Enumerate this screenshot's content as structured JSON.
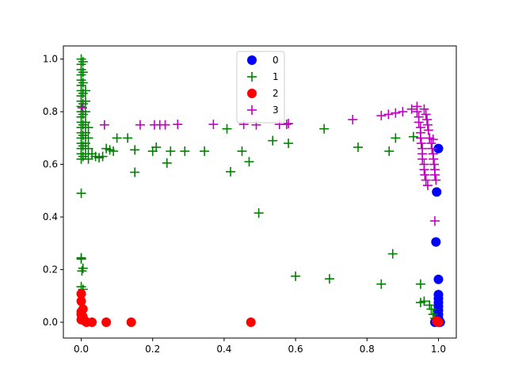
{
  "chart_data": {
    "type": "scatter",
    "title": "",
    "xlabel": "",
    "ylabel": "",
    "xlim": [
      -0.05,
      1.05
    ],
    "ylim": [
      -0.06,
      1.05
    ],
    "xticks": [
      "0.0",
      "0.2",
      "0.4",
      "0.6",
      "0.8",
      "1.0"
    ],
    "yticks": [
      "0.0",
      "0.2",
      "0.4",
      "0.6",
      "0.8",
      "1.0"
    ],
    "grid": false,
    "legend_position": "top-center",
    "series": [
      {
        "name": "0",
        "marker": "circle",
        "color": "#0000ff",
        "points": [
          [
            1.0,
            0.66
          ],
          [
            0.995,
            0.495
          ],
          [
            0.993,
            0.305
          ],
          [
            1.0,
            0.163
          ],
          [
            1.0,
            0.105
          ],
          [
            1.0,
            0.09
          ],
          [
            1.0,
            0.075
          ],
          [
            1.0,
            0.06
          ],
          [
            1.0,
            0.045
          ],
          [
            1.0,
            0.03
          ],
          [
            1.0,
            0.015
          ],
          [
            1.0,
            0.0
          ],
          [
            0.99,
            0.0
          ],
          [
            1.005,
            0.0
          ]
        ]
      },
      {
        "name": "1",
        "marker": "plus",
        "color": "#008000",
        "points": [
          [
            0.0,
            1.0
          ],
          [
            0.0,
            0.98
          ],
          [
            0.0,
            0.96
          ],
          [
            0.0,
            0.94
          ],
          [
            0.0,
            0.92
          ],
          [
            0.0,
            0.9
          ],
          [
            0.0,
            0.88
          ],
          [
            0.0,
            0.86
          ],
          [
            0.0,
            0.84
          ],
          [
            0.0,
            0.82
          ],
          [
            0.0,
            0.8
          ],
          [
            0.0,
            0.78
          ],
          [
            0.0,
            0.76
          ],
          [
            0.0,
            0.74
          ],
          [
            0.0,
            0.72
          ],
          [
            0.0,
            0.7
          ],
          [
            0.0,
            0.68
          ],
          [
            0.0,
            0.66
          ],
          [
            0.0,
            0.64
          ],
          [
            0.0,
            0.62
          ],
          [
            0.005,
            0.99
          ],
          [
            0.005,
            0.95
          ],
          [
            0.005,
            0.91
          ],
          [
            0.005,
            0.87
          ],
          [
            0.005,
            0.83
          ],
          [
            0.005,
            0.79
          ],
          [
            0.005,
            0.75
          ],
          [
            0.005,
            0.71
          ],
          [
            0.005,
            0.67
          ],
          [
            0.005,
            0.63
          ],
          [
            0.012,
            0.88
          ],
          [
            0.012,
            0.84
          ],
          [
            0.012,
            0.8
          ],
          [
            0.012,
            0.76
          ],
          [
            0.012,
            0.72
          ],
          [
            0.012,
            0.68
          ],
          [
            0.012,
            0.64
          ],
          [
            0.02,
            0.74
          ],
          [
            0.02,
            0.7
          ],
          [
            0.02,
            0.66
          ],
          [
            0.02,
            0.62
          ],
          [
            0.03,
            0.64
          ],
          [
            0.04,
            0.63
          ],
          [
            0.05,
            0.625
          ],
          [
            0.06,
            0.63
          ],
          [
            0.07,
            0.66
          ],
          [
            0.08,
            0.655
          ],
          [
            0.09,
            0.65
          ],
          [
            0.1,
            0.7
          ],
          [
            0.13,
            0.7
          ],
          [
            0.15,
            0.655
          ],
          [
            0.2,
            0.65
          ],
          [
            0.21,
            0.665
          ],
          [
            0.25,
            0.65
          ],
          [
            0.29,
            0.65
          ],
          [
            0.345,
            0.65
          ],
          [
            0.45,
            0.65
          ],
          [
            0.408,
            0.735
          ],
          [
            0.68,
            0.735
          ],
          [
            0.536,
            0.69
          ],
          [
            0.58,
            0.68
          ],
          [
            0.775,
            0.665
          ],
          [
            0.862,
            0.65
          ],
          [
            0.88,
            0.7
          ],
          [
            0.93,
            0.705
          ],
          [
            0.15,
            0.57
          ],
          [
            0.24,
            0.605
          ],
          [
            0.418,
            0.572
          ],
          [
            0.47,
            0.61
          ],
          [
            0.0,
            0.49
          ],
          [
            0.0,
            0.245
          ],
          [
            0.0,
            0.24
          ],
          [
            0.005,
            0.205
          ],
          [
            0.002,
            0.195
          ],
          [
            0.0,
            0.135
          ],
          [
            0.005,
            0.125
          ],
          [
            0.497,
            0.415
          ],
          [
            0.872,
            0.26
          ],
          [
            0.6,
            0.175
          ],
          [
            0.695,
            0.165
          ],
          [
            0.84,
            0.145
          ],
          [
            0.95,
            0.145
          ],
          [
            0.95,
            0.075
          ],
          [
            0.96,
            0.08
          ],
          [
            0.975,
            0.065
          ],
          [
            0.98,
            0.05
          ],
          [
            0.985,
            0.03
          ],
          [
            0.99,
            0.015
          ],
          [
            0.995,
            0.005
          ]
        ]
      },
      {
        "name": "2",
        "marker": "circle",
        "color": "#ff0000",
        "points": [
          [
            0.0,
            0.108
          ],
          [
            0.0,
            0.08
          ],
          [
            0.005,
            0.05
          ],
          [
            0.0,
            0.04
          ],
          [
            0.0,
            0.03
          ],
          [
            0.005,
            0.02
          ],
          [
            0.0,
            0.01
          ],
          [
            0.01,
            0.005
          ],
          [
            0.015,
            0.0
          ],
          [
            0.03,
            0.0
          ],
          [
            0.07,
            0.0
          ],
          [
            0.14,
            0.0
          ],
          [
            0.475,
            0.0
          ],
          [
            1.0,
            0.0
          ],
          [
            0.995,
            0.005
          ]
        ]
      },
      {
        "name": "3",
        "marker": "plus",
        "color": "#bf00bf",
        "points": [
          [
            0.003,
            0.815
          ],
          [
            0.065,
            0.75
          ],
          [
            0.165,
            0.75
          ],
          [
            0.205,
            0.75
          ],
          [
            0.22,
            0.75
          ],
          [
            0.235,
            0.75
          ],
          [
            0.27,
            0.752
          ],
          [
            0.37,
            0.752
          ],
          [
            0.455,
            0.752
          ],
          [
            0.49,
            0.75
          ],
          [
            0.555,
            0.752
          ],
          [
            0.575,
            0.752
          ],
          [
            0.58,
            0.755
          ],
          [
            0.76,
            0.77
          ],
          [
            0.84,
            0.785
          ],
          [
            0.86,
            0.79
          ],
          [
            0.88,
            0.795
          ],
          [
            0.9,
            0.8
          ],
          [
            0.925,
            0.81
          ],
          [
            0.94,
            0.82
          ],
          [
            0.94,
            0.8
          ],
          [
            0.945,
            0.78
          ],
          [
            0.945,
            0.76
          ],
          [
            0.95,
            0.74
          ],
          [
            0.95,
            0.72
          ],
          [
            0.95,
            0.7
          ],
          [
            0.952,
            0.68
          ],
          [
            0.955,
            0.66
          ],
          [
            0.955,
            0.64
          ],
          [
            0.955,
            0.62
          ],
          [
            0.96,
            0.6
          ],
          [
            0.96,
            0.58
          ],
          [
            0.962,
            0.56
          ],
          [
            0.965,
            0.54
          ],
          [
            0.97,
            0.52
          ],
          [
            0.96,
            0.81
          ],
          [
            0.965,
            0.79
          ],
          [
            0.968,
            0.77
          ],
          [
            0.97,
            0.75
          ],
          [
            0.972,
            0.73
          ],
          [
            0.975,
            0.7
          ],
          [
            0.98,
            0.68
          ],
          [
            0.982,
            0.66
          ],
          [
            0.985,
            0.64
          ],
          [
            0.986,
            0.62
          ],
          [
            0.988,
            0.6
          ],
          [
            0.99,
            0.58
          ],
          [
            0.99,
            0.56
          ],
          [
            0.993,
            0.54
          ],
          [
            0.985,
            0.695
          ],
          [
            0.99,
            0.385
          ]
        ]
      }
    ]
  }
}
